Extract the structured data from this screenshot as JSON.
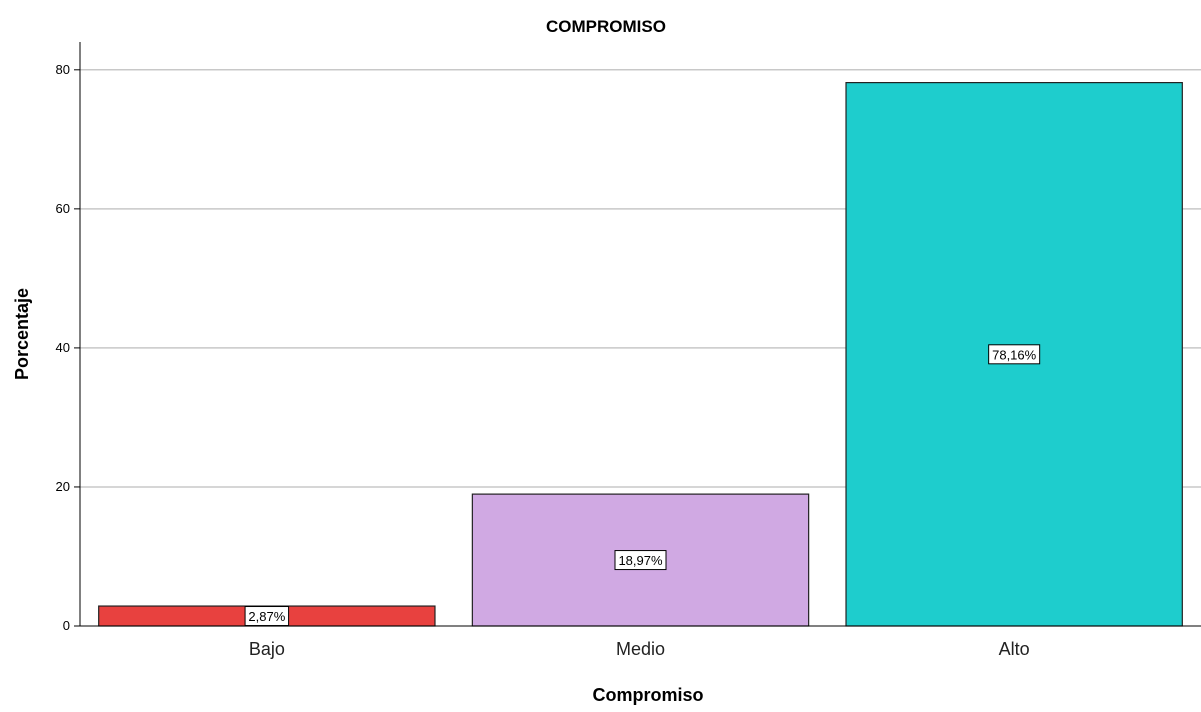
{
  "chart_data": {
    "type": "bar",
    "title": "COMPROMISO",
    "xlabel": "Compromiso",
    "ylabel": "Porcentaje",
    "categories": [
      "Bajo",
      "Medio",
      "Alto"
    ],
    "values": [
      2.87,
      18.97,
      78.16
    ],
    "data_labels": [
      "2,87%",
      "18,97%",
      "78,16%"
    ],
    "colors": [
      "#e8413f",
      "#d0a9e3",
      "#1ecdcd"
    ],
    "ylim": [
      0,
      84
    ],
    "yticks": [
      0,
      20,
      40,
      60,
      80
    ],
    "grid": true,
    "legend": "none"
  }
}
